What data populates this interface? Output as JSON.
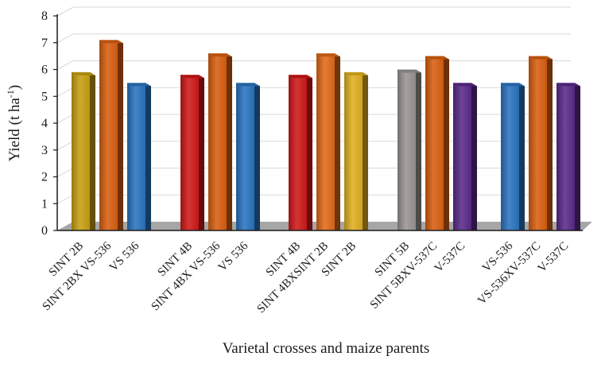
{
  "chart_data": {
    "type": "bar",
    "title": "",
    "xlabel": "Varietal crosses and maize parents",
    "ylabel": "Yield (t ha",
    "ylabel_sup": "-1",
    "ylabel_close": ")",
    "ylim": [
      0,
      8
    ],
    "yticks": [
      "0",
      "1",
      "2",
      "3",
      "4",
      "5",
      "6",
      "7",
      "8"
    ],
    "grid": true,
    "groups": [
      {
        "bars": [
          {
            "label": "SINT 2B",
            "value": 5.9,
            "color": "#c8a010"
          },
          {
            "label": "SINT 2BX VS-536",
            "value": 7.1,
            "color": "#d96010"
          },
          {
            "label": "VS 536",
            "value": 5.5,
            "color": "#2a74c0"
          }
        ]
      },
      {
        "bars": [
          {
            "label": "SINT 4B",
            "value": 5.8,
            "color": "#d01818"
          },
          {
            "label": "SINT 4BX VS-536",
            "value": 6.6,
            "color": "#d96010"
          },
          {
            "label": "VS 536",
            "value": 5.5,
            "color": "#2a74c0"
          }
        ]
      },
      {
        "bars": [
          {
            "label": "SINT 4B",
            "value": 5.8,
            "color": "#d01818"
          },
          {
            "label": "SINT 4BXSINT 2B",
            "value": 6.6,
            "color": "#e06a18"
          },
          {
            "label": "SINT 2B",
            "value": 5.9,
            "color": "#e0b020"
          }
        ]
      },
      {
        "bars": [
          {
            "label": "SINT 5B",
            "value": 6.0,
            "color": "#9a9494"
          },
          {
            "label": "SINT 5BXV-537C",
            "value": 6.5,
            "color": "#d96010"
          },
          {
            "label": "V-537C",
            "value": 5.5,
            "color": "#5a2a8a"
          }
        ]
      },
      {
        "bars": [
          {
            "label": "VS-536",
            "value": 5.5,
            "color": "#2a74c0"
          },
          {
            "label": "VS-536XV-537C",
            "value": 6.5,
            "color": "#d96010"
          },
          {
            "label": "V-537C",
            "value": 5.5,
            "color": "#5a2a8a"
          }
        ]
      }
    ]
  }
}
